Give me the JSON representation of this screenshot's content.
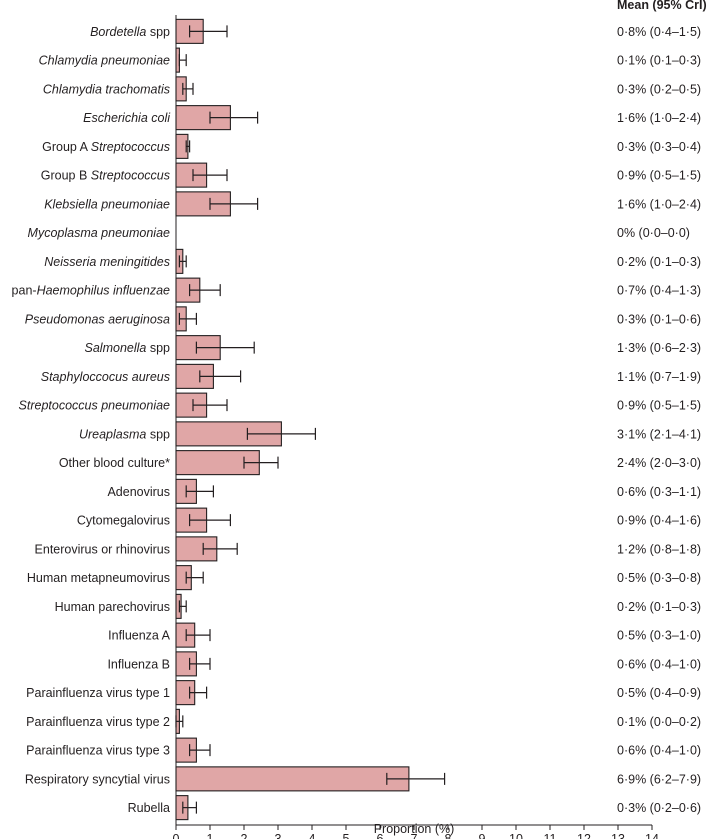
{
  "chart_data": {
    "type": "bar",
    "orientation": "horizontal",
    "xlabel": "Proportion (%)",
    "xlim": [
      0,
      14
    ],
    "xticks": [
      "0",
      "1",
      "2",
      "3",
      "4",
      "5",
      "6",
      "7",
      "8",
      "9",
      "10",
      "11",
      "12",
      "13",
      "14"
    ],
    "value_column_header": "Mean (95% CrI)",
    "bar_color": "#e0a6a6",
    "rows": [
      {
        "pre": "",
        "italic": "Bordetella",
        "post": " spp",
        "mean": 0.8,
        "low": 0.4,
        "high": 1.5,
        "text": "0·8% (0·4–1·5)"
      },
      {
        "pre": "",
        "italic": "Chlamydia pneumoniae",
        "post": "",
        "mean": 0.1,
        "low": 0.1,
        "high": 0.3,
        "text": "0·1% (0·1–0·3)"
      },
      {
        "pre": "",
        "italic": "Chlamydia trachomatis",
        "post": "",
        "mean": 0.3,
        "low": 0.2,
        "high": 0.5,
        "text": "0·3% (0·2–0·5)"
      },
      {
        "pre": "",
        "italic": "Escherichia coli",
        "post": "",
        "mean": 1.6,
        "low": 1.0,
        "high": 2.4,
        "text": "1·6% (1·0–2·4)"
      },
      {
        "pre": "Group A ",
        "italic": "Streptococcus",
        "post": "",
        "mean": 0.35,
        "low": 0.3,
        "high": 0.4,
        "text": "0·3% (0·3–0·4)"
      },
      {
        "pre": "Group B ",
        "italic": "Streptococcus",
        "post": "",
        "mean": 0.9,
        "low": 0.5,
        "high": 1.5,
        "text": "0·9% (0·5–1·5)"
      },
      {
        "pre": "",
        "italic": "Klebsiella pneumoniae",
        "post": "",
        "mean": 1.6,
        "low": 1.0,
        "high": 2.4,
        "text": "1·6% (1·0–2·4)"
      },
      {
        "pre": "",
        "italic": "Mycoplasma pneumoniae",
        "post": "",
        "mean": 0.0,
        "low": 0.0,
        "high": 0.0,
        "text": "0% (0·0–0·0)"
      },
      {
        "pre": "",
        "italic": "Neisseria meningitides",
        "post": "",
        "mean": 0.2,
        "low": 0.1,
        "high": 0.3,
        "text": "0·2% (0·1–0·3)"
      },
      {
        "pre": "pan-",
        "italic": "Haemophilus influenzae",
        "post": "",
        "mean": 0.7,
        "low": 0.4,
        "high": 1.3,
        "text": "0·7% (0·4–1·3)"
      },
      {
        "pre": "",
        "italic": "Pseudomonas aeruginosa",
        "post": "",
        "mean": 0.3,
        "low": 0.1,
        "high": 0.6,
        "text": "0·3% (0·1–0·6)"
      },
      {
        "pre": "",
        "italic": "Salmonella",
        "post": " spp",
        "mean": 1.3,
        "low": 0.6,
        "high": 2.3,
        "text": "1·3% (0·6–2·3)"
      },
      {
        "pre": "",
        "italic": "Staphyloccocus aureus",
        "post": "",
        "mean": 1.1,
        "low": 0.7,
        "high": 1.9,
        "text": "1·1% (0·7–1·9)"
      },
      {
        "pre": "",
        "italic": "Streptococcus pneumoniae",
        "post": "",
        "mean": 0.9,
        "low": 0.5,
        "high": 1.5,
        "text": "0·9% (0·5–1·5)"
      },
      {
        "pre": "",
        "italic": "Ureaplasma",
        "post": " spp",
        "mean": 3.1,
        "low": 2.1,
        "high": 4.1,
        "text": "3·1% (2·1–4·1)"
      },
      {
        "pre": "Other blood culture*",
        "italic": "",
        "post": "",
        "mean": 2.45,
        "low": 2.0,
        "high": 3.0,
        "text": "2·4% (2·0–3·0)"
      },
      {
        "pre": "Adenovirus",
        "italic": "",
        "post": "",
        "mean": 0.6,
        "low": 0.3,
        "high": 1.1,
        "text": "0·6% (0·3–1·1)"
      },
      {
        "pre": "Cytomegalovirus",
        "italic": "",
        "post": "",
        "mean": 0.9,
        "low": 0.4,
        "high": 1.6,
        "text": "0·9% (0·4–1·6)"
      },
      {
        "pre": "Enterovirus or rhinovirus",
        "italic": "",
        "post": "",
        "mean": 1.2,
        "low": 0.8,
        "high": 1.8,
        "text": "1·2% (0·8–1·8)"
      },
      {
        "pre": "Human metapneumovirus",
        "italic": "",
        "post": "",
        "mean": 0.45,
        "low": 0.3,
        "high": 0.8,
        "text": "0·5% (0·3–0·8)"
      },
      {
        "pre": "Human parechovirus",
        "italic": "",
        "post": "",
        "mean": 0.15,
        "low": 0.1,
        "high": 0.3,
        "text": "0·2% (0·1–0·3)"
      },
      {
        "pre": "Influenza A",
        "italic": "",
        "post": "",
        "mean": 0.55,
        "low": 0.3,
        "high": 1.0,
        "text": "0·5% (0·3–1·0)"
      },
      {
        "pre": "Influenza B",
        "italic": "",
        "post": "",
        "mean": 0.6,
        "low": 0.4,
        "high": 1.0,
        "text": "0·6% (0·4–1·0)"
      },
      {
        "pre": "Parainfluenza virus type 1",
        "italic": "",
        "post": "",
        "mean": 0.55,
        "low": 0.4,
        "high": 0.9,
        "text": "0·5% (0·4–0·9)"
      },
      {
        "pre": "Parainfluenza virus type 2",
        "italic": "",
        "post": "",
        "mean": 0.1,
        "low": 0.0,
        "high": 0.2,
        "text": "0·1% (0·0–0·2)"
      },
      {
        "pre": "Parainfluenza virus type 3",
        "italic": "",
        "post": "",
        "mean": 0.6,
        "low": 0.4,
        "high": 1.0,
        "text": "0·6% (0·4–1·0)"
      },
      {
        "pre": "Respiratory syncytial virus",
        "italic": "",
        "post": "",
        "mean": 6.85,
        "low": 6.2,
        "high": 7.9,
        "text": "6·9% (6·2–7·9)"
      },
      {
        "pre": "Rubella",
        "italic": "",
        "post": "",
        "mean": 0.35,
        "low": 0.2,
        "high": 0.6,
        "text": "0·3% (0·2–0·6)"
      }
    ]
  }
}
